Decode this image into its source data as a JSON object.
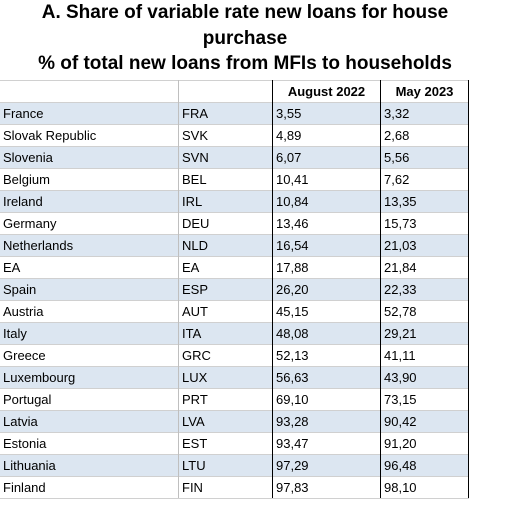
{
  "title": {
    "lines": [
      "A. Share of variable rate new loans for house",
      "purchase",
      "% of total new loans from MFIs to households"
    ]
  },
  "table": {
    "header": [
      "",
      "",
      "August 2022",
      "May 2023"
    ],
    "rows": [
      [
        "France",
        "FRA",
        "3,55",
        "3,32"
      ],
      [
        "Slovak Republic",
        "SVK",
        "4,89",
        "2,68"
      ],
      [
        "Slovenia",
        "SVN",
        "6,07",
        "5,56"
      ],
      [
        "Belgium",
        "BEL",
        "10,41",
        "7,62"
      ],
      [
        "Ireland",
        "IRL",
        "10,84",
        "13,35"
      ],
      [
        "Germany",
        "DEU",
        "13,46",
        "15,73"
      ],
      [
        "Netherlands",
        "NLD",
        "16,54",
        "21,03"
      ],
      [
        "EA",
        "EA",
        "17,88",
        "21,84"
      ],
      [
        "Spain",
        "ESP",
        "26,20",
        "22,33"
      ],
      [
        "Austria",
        "AUT",
        "45,15",
        "52,78"
      ],
      [
        "Italy",
        "ITA",
        "48,08",
        "29,21"
      ],
      [
        "Greece",
        "GRC",
        "52,13",
        "41,11"
      ],
      [
        "Luxembourg",
        "LUX",
        "56,63",
        "43,90"
      ],
      [
        "Portugal",
        "PRT",
        "69,10",
        "73,15"
      ],
      [
        "Latvia",
        "LVA",
        "93,28",
        "90,42"
      ],
      [
        "Estonia",
        "EST",
        "93,47",
        "91,20"
      ],
      [
        "Lithuania",
        "LTU",
        "97,29",
        "96,48"
      ],
      [
        "Finland",
        "FIN",
        "97,83",
        "98,10"
      ]
    ]
  }
}
